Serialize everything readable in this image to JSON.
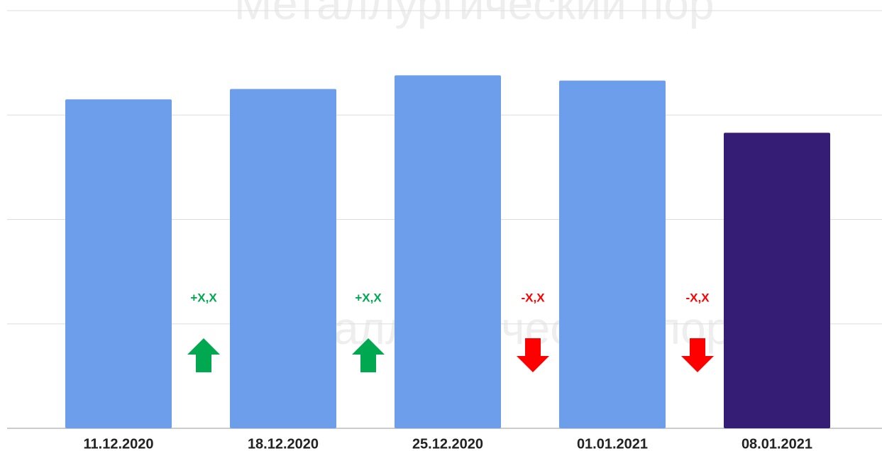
{
  "chart_data": {
    "type": "bar",
    "watermarks": [
      "Металлургический пор",
      "аллургический пор"
    ],
    "categories": [
      "11.12.2020",
      "18.12.2020",
      "25.12.2020",
      "01.01.2021",
      "08.01.2021"
    ],
    "values": [
      3.15,
      3.25,
      3.38,
      3.33,
      2.83
    ],
    "colors": [
      "#6d9eeb",
      "#6d9eeb",
      "#6d9eeb",
      "#6d9eeb",
      "#351c75"
    ],
    "ylim": [
      0,
      4
    ],
    "yticks": [
      0,
      1,
      2,
      3,
      4
    ],
    "grid": true,
    "annotations": [
      {
        "text": "+X,X",
        "direction": "up",
        "color": "#00a94f"
      },
      {
        "text": "+X,X",
        "direction": "up",
        "color": "#00a94f"
      },
      {
        "text": "-X,X",
        "direction": "down",
        "color": "#ff0000"
      },
      {
        "text": "-X,X",
        "direction": "down",
        "color": "#ff0000"
      }
    ]
  }
}
